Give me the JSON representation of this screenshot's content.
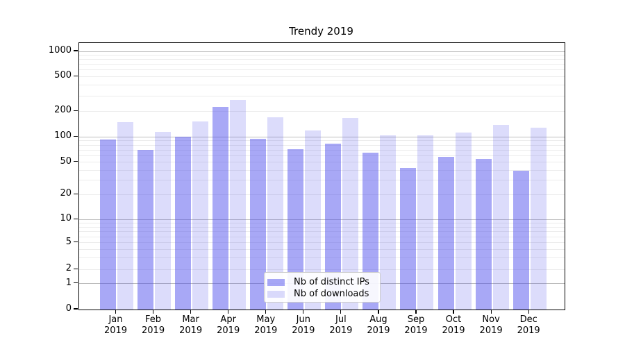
{
  "chart_data": {
    "type": "bar",
    "title": "Trendy 2019",
    "categories": [
      "Jan",
      "Feb",
      "Mar",
      "Apr",
      "May",
      "Jun",
      "Jul",
      "Aug",
      "Sep",
      "Oct",
      "Nov",
      "Dec"
    ],
    "category_year": "2019",
    "series": [
      {
        "name": "Nb of distinct IPs",
        "color": "#a8a8f4",
        "fill": "rgba(70,70,235,0.47)",
        "values": [
          94,
          70,
          100,
          225,
          96,
          71,
          84,
          65,
          43,
          58,
          55,
          39
        ]
      },
      {
        "name": "Nb of downloads",
        "color": "#dbdbfa",
        "fill": "rgba(70,70,235,0.19)",
        "values": [
          151,
          115,
          153,
          271,
          172,
          119,
          166,
          105,
          104,
          112,
          139,
          129
        ]
      }
    ],
    "xlabel": "",
    "ylabel": "",
    "yscale": "symlog",
    "yticks": [
      0,
      1,
      2,
      5,
      10,
      20,
      50,
      100,
      200,
      500,
      1000
    ],
    "ylim": [
      0,
      1300
    ],
    "grid": "horizontal",
    "legend_position": "lower center"
  }
}
